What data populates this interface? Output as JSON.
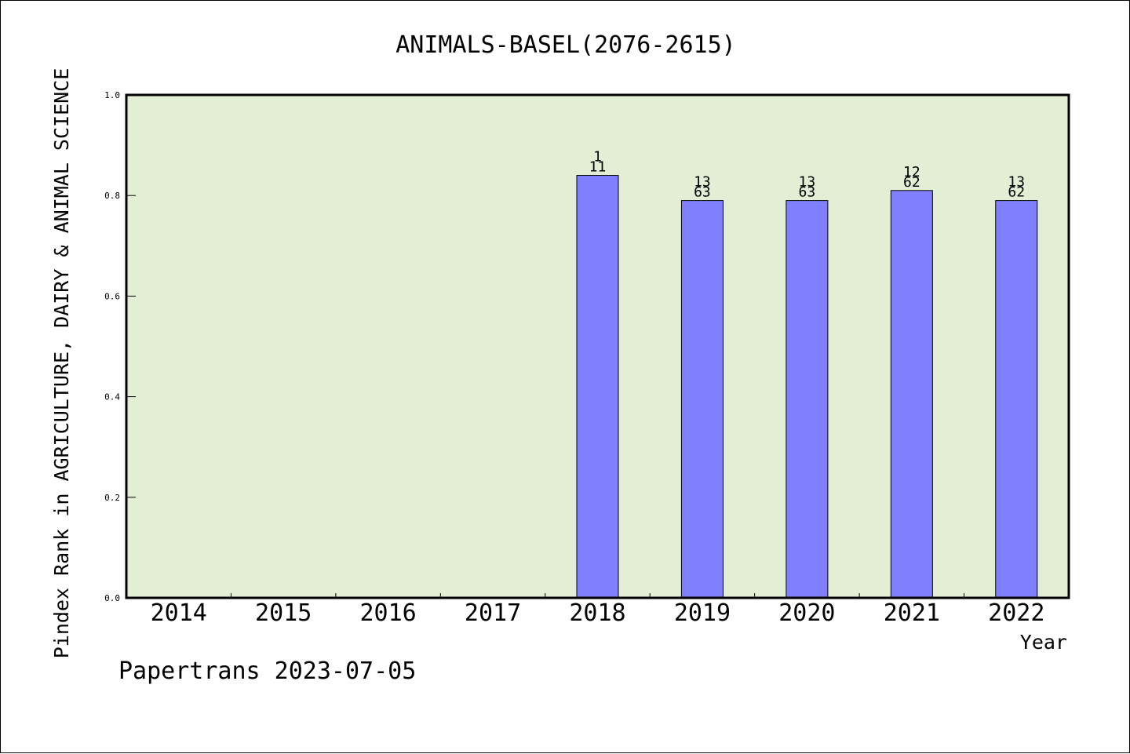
{
  "chart_data": {
    "type": "bar",
    "title": "ANIMALS-BASEL(2076-2615)",
    "xlabel": "Year",
    "ylabel": "Pindex Rank in AGRICULTURE, DAIRY & ANIMAL SCIENCE",
    "categories": [
      "2014",
      "2015",
      "2016",
      "2017",
      "2018",
      "2019",
      "2020",
      "2021",
      "2022"
    ],
    "values": [
      null,
      null,
      null,
      null,
      0.84,
      0.79,
      0.79,
      0.81,
      0.79
    ],
    "bar_labels": [
      null,
      null,
      null,
      null,
      [
        "1",
        "11"
      ],
      [
        "13",
        "63"
      ],
      [
        "13",
        "63"
      ],
      [
        "12",
        "62"
      ],
      [
        "13",
        "62"
      ]
    ],
    "ylim": [
      0,
      1.0
    ],
    "yticks": [
      "0.0",
      "0.2",
      "0.4",
      "0.6",
      "0.8",
      "1.0"
    ],
    "grid": false,
    "colors": {
      "plot_background": "#e2efd5",
      "bar": "#8080ff",
      "bar_edge": "#000000",
      "axis": "#000000"
    }
  },
  "footer": {
    "credit": "Papertrans 2023-07-05"
  }
}
